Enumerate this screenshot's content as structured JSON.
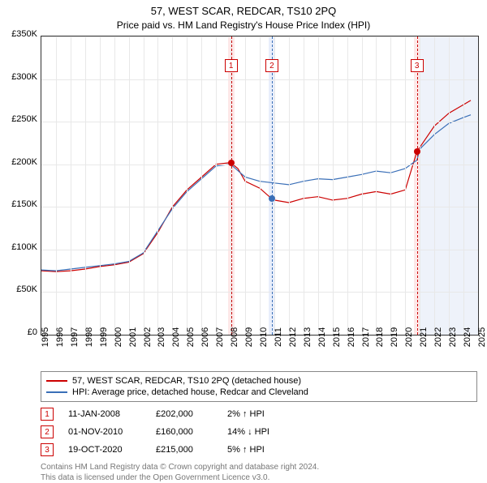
{
  "title": "57, WEST SCAR, REDCAR, TS10 2PQ",
  "subtitle": "Price paid vs. HM Land Registry's House Price Index (HPI)",
  "chart": {
    "type": "line",
    "ylim": [
      0,
      350000
    ],
    "ytick_step": 50000,
    "ytick_labels": [
      "£0",
      "£50K",
      "£100K",
      "£150K",
      "£200K",
      "£250K",
      "£300K",
      "£350K"
    ],
    "xlim": [
      1995,
      2025
    ],
    "xtick_step": 1,
    "xtick_labels": [
      "1995",
      "1996",
      "1997",
      "1998",
      "1999",
      "2000",
      "2001",
      "2002",
      "2003",
      "2004",
      "2005",
      "2006",
      "2007",
      "2008",
      "2009",
      "2010",
      "2011",
      "2012",
      "2013",
      "2014",
      "2015",
      "2016",
      "2017",
      "2018",
      "2019",
      "2020",
      "2021",
      "2022",
      "2023",
      "2024",
      "2025"
    ],
    "background_color": "#ffffff",
    "grid_color": "#e8e8e8",
    "series": [
      {
        "name": "57, WEST SCAR, REDCAR, TS10 2PQ (detached house)",
        "color": "#cc0000",
        "width": 1.2,
        "data": [
          [
            1995,
            75000
          ],
          [
            1996,
            74000
          ],
          [
            1997,
            75000
          ],
          [
            1998,
            77000
          ],
          [
            1999,
            80000
          ],
          [
            2000,
            82000
          ],
          [
            2001,
            85000
          ],
          [
            2002,
            95000
          ],
          [
            2003,
            120000
          ],
          [
            2004,
            150000
          ],
          [
            2005,
            170000
          ],
          [
            2006,
            185000
          ],
          [
            2007,
            200000
          ],
          [
            2008,
            202000
          ],
          [
            2008.5,
            195000
          ],
          [
            2009,
            180000
          ],
          [
            2010,
            172000
          ],
          [
            2010.8,
            160000
          ],
          [
            2011,
            158000
          ],
          [
            2012,
            155000
          ],
          [
            2013,
            160000
          ],
          [
            2014,
            162000
          ],
          [
            2015,
            158000
          ],
          [
            2016,
            160000
          ],
          [
            2017,
            165000
          ],
          [
            2018,
            168000
          ],
          [
            2019,
            165000
          ],
          [
            2020,
            170000
          ],
          [
            2020.8,
            215000
          ],
          [
            2021,
            220000
          ],
          [
            2022,
            245000
          ],
          [
            2023,
            260000
          ],
          [
            2024,
            270000
          ],
          [
            2024.5,
            275000
          ]
        ]
      },
      {
        "name": "HPI: Average price, detached house, Redcar and Cleveland",
        "color": "#3a6fb7",
        "width": 1.2,
        "data": [
          [
            1995,
            76000
          ],
          [
            1996,
            75000
          ],
          [
            1997,
            77000
          ],
          [
            1998,
            79000
          ],
          [
            1999,
            81000
          ],
          [
            2000,
            83000
          ],
          [
            2001,
            86000
          ],
          [
            2002,
            96000
          ],
          [
            2003,
            122000
          ],
          [
            2004,
            148000
          ],
          [
            2005,
            168000
          ],
          [
            2006,
            183000
          ],
          [
            2007,
            198000
          ],
          [
            2008,
            200000
          ],
          [
            2009,
            185000
          ],
          [
            2010,
            180000
          ],
          [
            2011,
            178000
          ],
          [
            2012,
            176000
          ],
          [
            2013,
            180000
          ],
          [
            2014,
            183000
          ],
          [
            2015,
            182000
          ],
          [
            2016,
            185000
          ],
          [
            2017,
            188000
          ],
          [
            2018,
            192000
          ],
          [
            2019,
            190000
          ],
          [
            2020,
            195000
          ],
          [
            2020.8,
            205000
          ],
          [
            2021,
            218000
          ],
          [
            2022,
            235000
          ],
          [
            2023,
            248000
          ],
          [
            2024,
            255000
          ],
          [
            2024.5,
            258000
          ]
        ]
      }
    ],
    "markers": [
      {
        "num": "1",
        "x": 2008.03,
        "price": 202000,
        "band_color": "#fde8e8",
        "line_color": "#cc0000"
      },
      {
        "num": "2",
        "x": 2010.83,
        "price": 160000,
        "band_color": "#e8eefb",
        "line_color": "#3a6fb7"
      },
      {
        "num": "3",
        "x": 2020.8,
        "price": 215000,
        "band_color": "#fde8e8",
        "line_color": "#cc0000"
      }
    ],
    "band_right": {
      "from": 2021,
      "to": 2025,
      "color": "#eef2fa"
    }
  },
  "legend": {
    "series1": "57, WEST SCAR, REDCAR, TS10 2PQ (detached house)",
    "series2": "HPI: Average price, detached house, Redcar and Cleveland",
    "color1": "#cc0000",
    "color2": "#3a6fb7"
  },
  "events": [
    {
      "num": "1",
      "date": "11-JAN-2008",
      "price": "£202,000",
      "diff": "2% ↑ HPI"
    },
    {
      "num": "2",
      "date": "01-NOV-2010",
      "price": "£160,000",
      "diff": "14% ↓ HPI"
    },
    {
      "num": "3",
      "date": "19-OCT-2020",
      "price": "£215,000",
      "diff": "5% ↑ HPI"
    }
  ],
  "footer": {
    "line1": "Contains HM Land Registry data © Crown copyright and database right 2024.",
    "line2": "This data is licensed under the Open Government Licence v3.0."
  }
}
